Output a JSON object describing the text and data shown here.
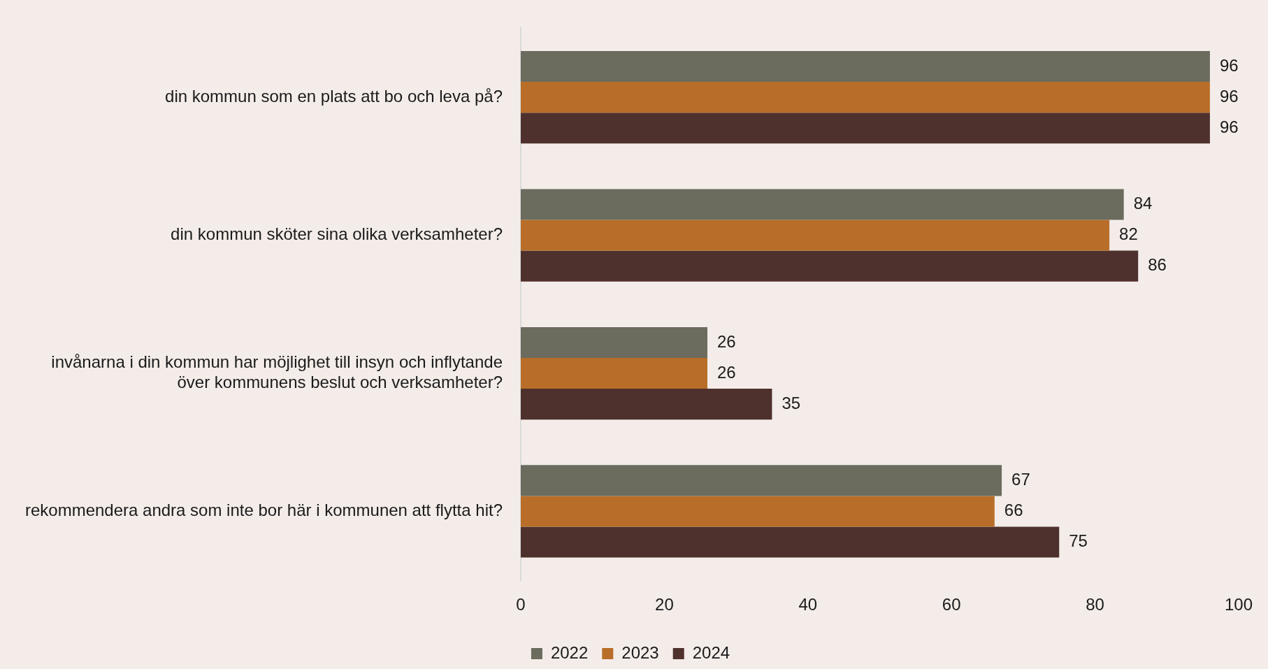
{
  "chart_data": {
    "type": "bar",
    "orientation": "horizontal",
    "categories": [
      "din kommun som en plats att bo och leva på?",
      "din kommun sköter sina olika verksamheter?",
      "invånarna i din kommun har möjlighet till insyn och inflytande över kommunens beslut och verksamheter?",
      "rekommendera andra som inte bor här i kommunen att flytta hit?"
    ],
    "series": [
      {
        "name": "2022",
        "color": "#6b6b5e",
        "values": [
          96,
          84,
          26,
          67
        ]
      },
      {
        "name": "2023",
        "color": "#b86e28",
        "values": [
          96,
          82,
          26,
          66
        ]
      },
      {
        "name": "2024",
        "color": "#4e302d",
        "values": [
          96,
          86,
          35,
          75
        ]
      }
    ],
    "xlim": [
      0,
      100
    ],
    "xticks": [
      0,
      20,
      40,
      60,
      80,
      100
    ],
    "data_labels": true,
    "grid": false,
    "legend": "bottom"
  }
}
